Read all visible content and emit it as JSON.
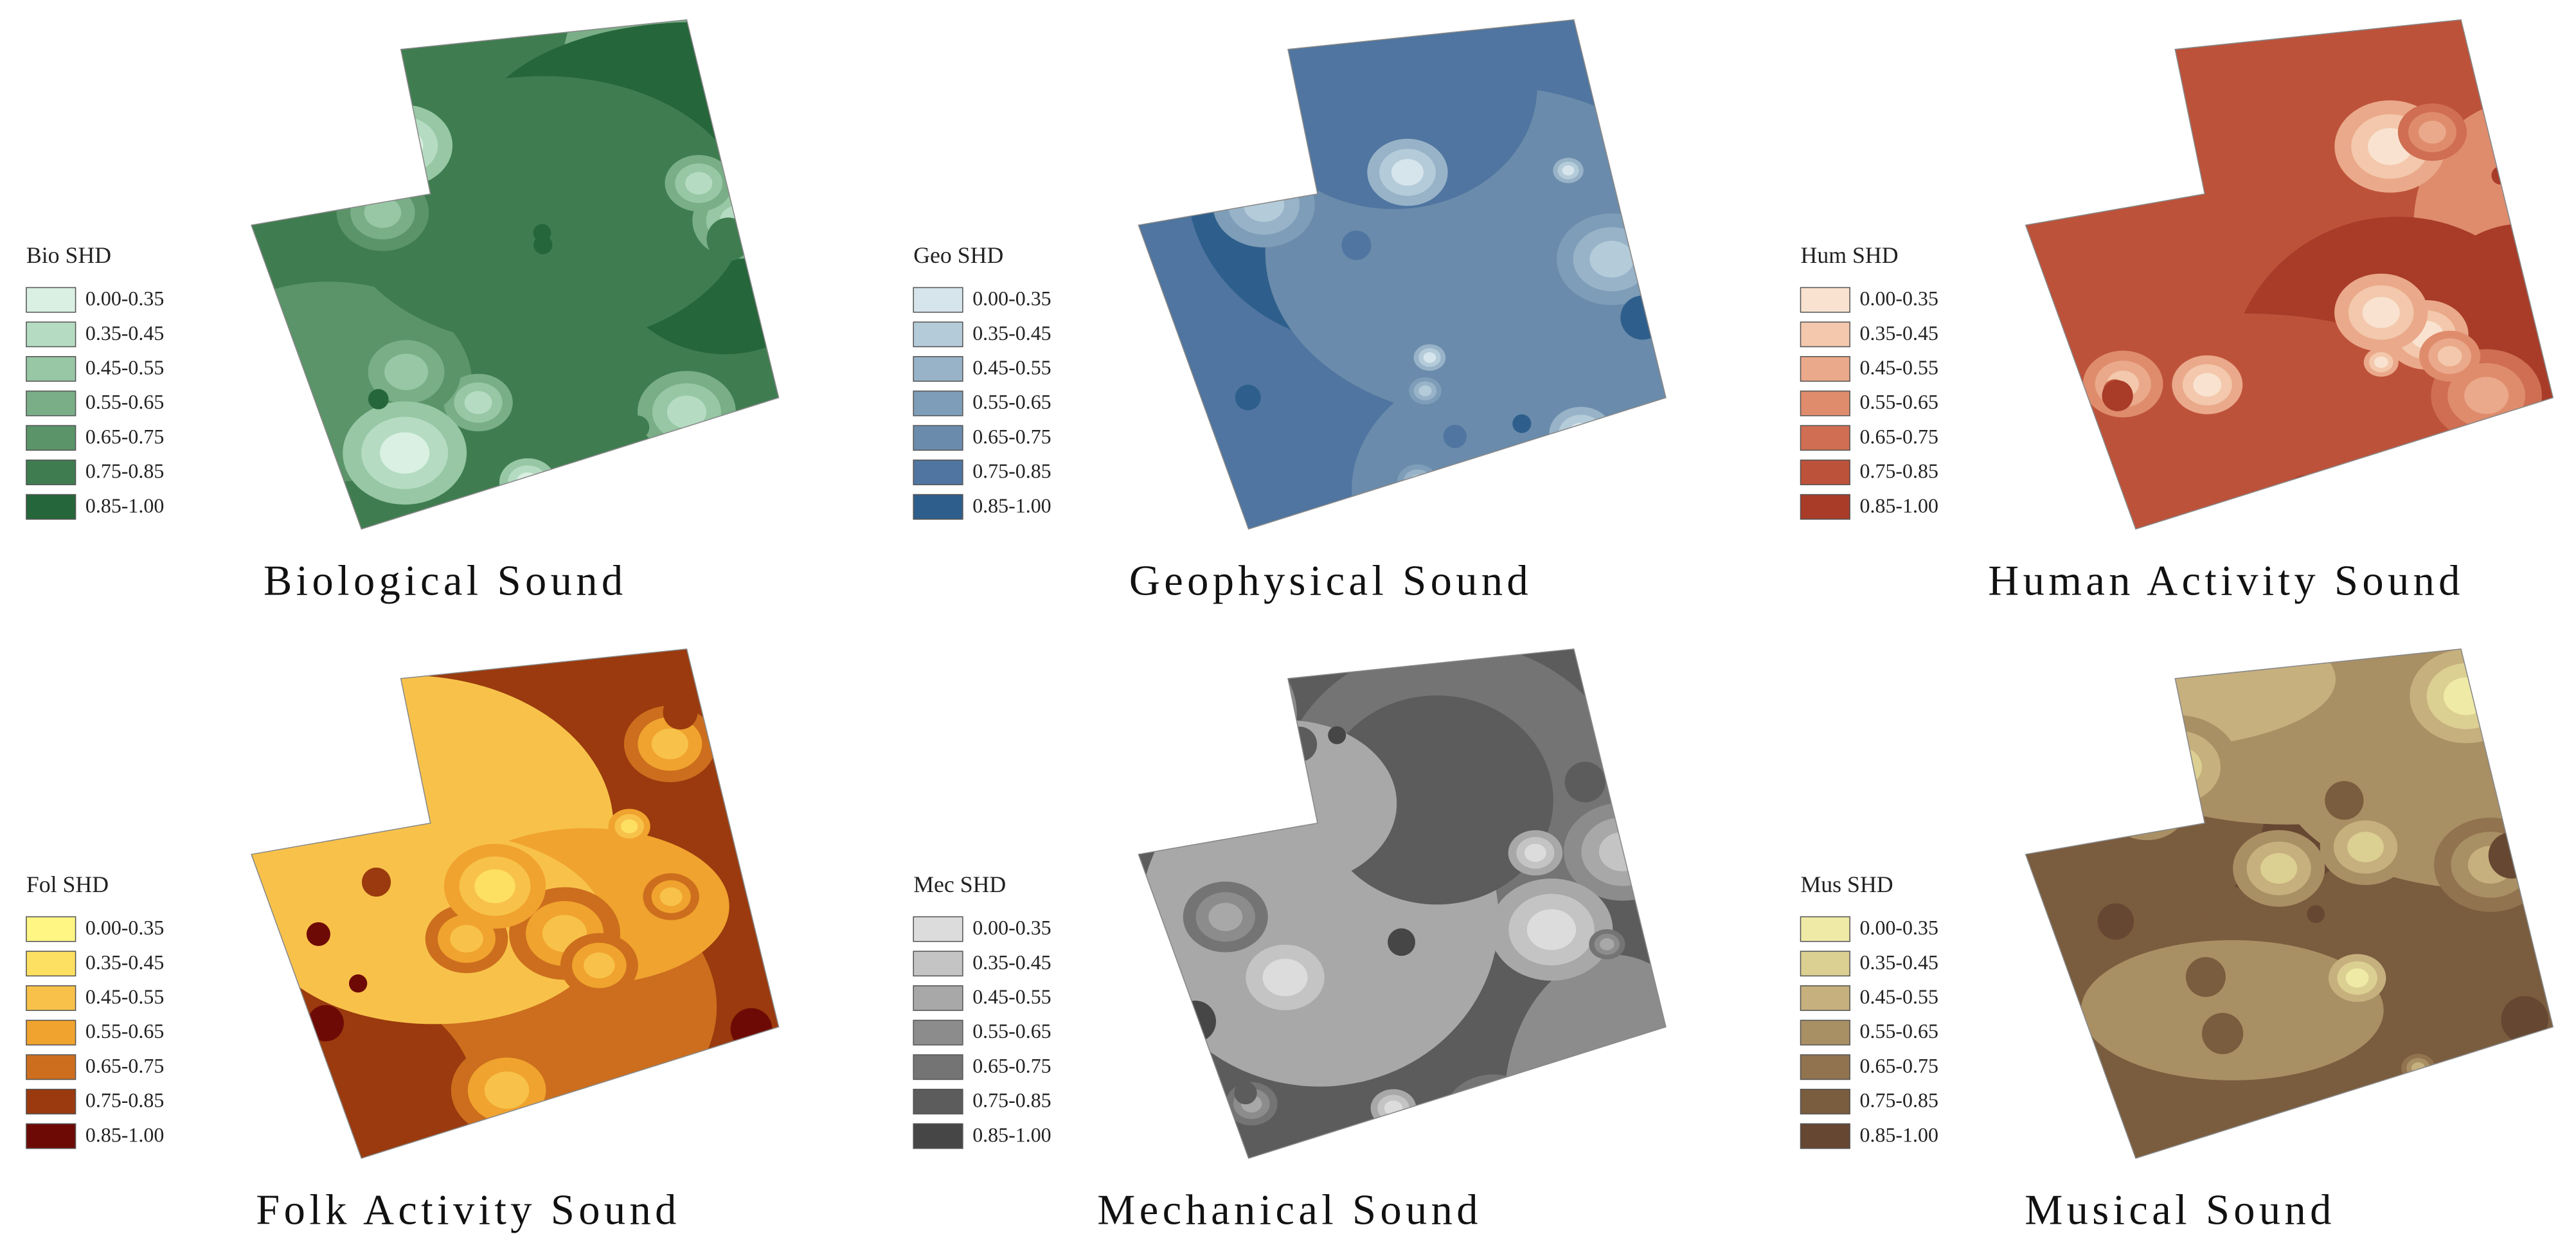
{
  "panels": [
    {
      "title": "Biological Sound",
      "legend_title": "Bio SHD",
      "legend": [
        {
          "label": "0.00-0.35",
          "color": "#d9f0e3"
        },
        {
          "label": "0.35-0.45",
          "color": "#b5dcc2"
        },
        {
          "label": "0.45-0.55",
          "color": "#97c7a4"
        },
        {
          "label": "0.55-0.65",
          "color": "#79ae87"
        },
        {
          "label": "0.65-0.75",
          "color": "#5a9468"
        },
        {
          "label": "0.75-0.85",
          "color": "#3f7d50"
        },
        {
          "label": "0.85-1.00",
          "color": "#25663a"
        }
      ]
    },
    {
      "title": "Geophysical Sound",
      "legend_title": "Geo SHD",
      "legend": [
        {
          "label": "0.00-0.35",
          "color": "#d6e4ec"
        },
        {
          "label": "0.35-0.45",
          "color": "#b4cbd9"
        },
        {
          "label": "0.45-0.55",
          "color": "#98b3c8"
        },
        {
          "label": "0.55-0.65",
          "color": "#7e9db8"
        },
        {
          "label": "0.65-0.75",
          "color": "#6a8bab"
        },
        {
          "label": "0.75-0.85",
          "color": "#4f75a0"
        },
        {
          "label": "0.85-1.00",
          "color": "#2e5f8c"
        }
      ]
    },
    {
      "title": "Human Activity Sound",
      "legend_title": "Hum SHD",
      "legend": [
        {
          "label": "0.00-0.35",
          "color": "#f9e3d0"
        },
        {
          "label": "0.35-0.45",
          "color": "#f3c8ac"
        },
        {
          "label": "0.45-0.55",
          "color": "#eaa98a"
        },
        {
          "label": "0.55-0.65",
          "color": "#df8c6d"
        },
        {
          "label": "0.65-0.75",
          "color": "#cf6e52"
        },
        {
          "label": "0.75-0.85",
          "color": "#bd523a"
        },
        {
          "label": "0.85-1.00",
          "color": "#a83c28"
        }
      ]
    },
    {
      "title": "Folk Activity Sound",
      "legend_title": "Fol SHD",
      "legend": [
        {
          "label": "0.00-0.35",
          "color": "#fff684"
        },
        {
          "label": "0.35-0.45",
          "color": "#fde062"
        },
        {
          "label": "0.45-0.55",
          "color": "#f8c24a"
        },
        {
          "label": "0.55-0.65",
          "color": "#f0a32e"
        },
        {
          "label": "0.65-0.75",
          "color": "#cc6e1e"
        },
        {
          "label": "0.75-0.85",
          "color": "#9a3a0e"
        },
        {
          "label": "0.85-1.00",
          "color": "#6e0a06"
        }
      ]
    },
    {
      "title": "Mechanical Sound",
      "legend_title": "Mec SHD",
      "legend": [
        {
          "label": "0.00-0.35",
          "color": "#dcdcdc"
        },
        {
          "label": "0.35-0.45",
          "color": "#c4c4c4"
        },
        {
          "label": "0.45-0.55",
          "color": "#a8a8a8"
        },
        {
          "label": "0.55-0.65",
          "color": "#8c8c8c"
        },
        {
          "label": "0.65-0.75",
          "color": "#747474"
        },
        {
          "label": "0.75-0.85",
          "color": "#5c5c5c"
        },
        {
          "label": "0.85-1.00",
          "color": "#464646"
        }
      ]
    },
    {
      "title": "Musical Sound",
      "legend_title": "Mus SHD",
      "legend": [
        {
          "label": "0.00-0.35",
          "color": "#efeaa6"
        },
        {
          "label": "0.35-0.45",
          "color": "#dccf92"
        },
        {
          "label": "0.45-0.55",
          "color": "#c6b07e"
        },
        {
          "label": "0.55-0.65",
          "color": "#a98f64"
        },
        {
          "label": "0.65-0.75",
          "color": "#917350"
        },
        {
          "label": "0.75-0.85",
          "color": "#7a5c3e"
        },
        {
          "label": "0.85-1.00",
          "color": "#654732"
        }
      ]
    }
  ]
}
